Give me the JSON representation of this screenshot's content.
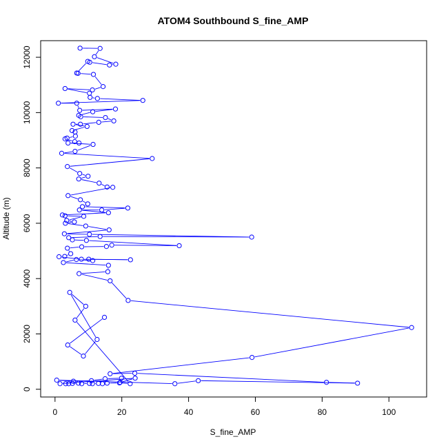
{
  "chart_data": {
    "type": "line",
    "title": "ATOM4 Southbound S_fine_AMP",
    "xlabel": "S_fine_AMP",
    "ylabel": "Altitude (m)",
    "xlim": [
      -4.3,
      111.3
    ],
    "ylim": [
      -280,
      12600
    ],
    "x_ticks": [
      0,
      20,
      40,
      60,
      80,
      100
    ],
    "y_ticks": [
      0,
      2000,
      4000,
      6000,
      8000,
      10000,
      12000
    ],
    "grid": false,
    "color": "#0000ff",
    "markers": "open-circle",
    "series": [
      {
        "name": "",
        "points": [
          [
            7.5,
            12330
          ],
          [
            13.5,
            12320
          ],
          [
            11.8,
            12020
          ],
          [
            18.2,
            11750
          ],
          [
            16.3,
            11720
          ],
          [
            10.4,
            11820
          ],
          [
            9.8,
            11850
          ],
          [
            6.5,
            11430
          ],
          [
            6.9,
            11420
          ],
          [
            11.5,
            11380
          ],
          [
            14.4,
            10940
          ],
          [
            11.2,
            10820
          ],
          [
            3.0,
            10870
          ],
          [
            10.3,
            10700
          ],
          [
            10.5,
            10550
          ],
          [
            12.7,
            10510
          ],
          [
            26.3,
            10440
          ],
          [
            1.0,
            10340
          ],
          [
            6.5,
            10340
          ],
          [
            7.4,
            10080
          ],
          [
            18.1,
            10130
          ],
          [
            11.3,
            10030
          ],
          [
            7.1,
            9900
          ],
          [
            7.7,
            9850
          ],
          [
            15.1,
            9820
          ],
          [
            17.6,
            9700
          ],
          [
            13.1,
            9650
          ],
          [
            7.6,
            9580
          ],
          [
            5.4,
            9580
          ],
          [
            9.6,
            9500
          ],
          [
            5.1,
            9350
          ],
          [
            6.0,
            9300
          ],
          [
            6.1,
            9150
          ],
          [
            3.6,
            9080
          ],
          [
            3.0,
            9050
          ],
          [
            5.9,
            8950
          ],
          [
            7.2,
            8900
          ],
          [
            3.9,
            8900
          ],
          [
            11.4,
            8850
          ],
          [
            6.0,
            8600
          ],
          [
            2.0,
            8530
          ],
          [
            29.1,
            8340
          ],
          [
            3.7,
            8050
          ],
          [
            7.4,
            7800
          ],
          [
            9.9,
            7700
          ],
          [
            7.1,
            7600
          ],
          [
            13.2,
            7450
          ],
          [
            15.6,
            7310
          ],
          [
            17.3,
            7300
          ],
          [
            3.9,
            7000
          ],
          [
            7.6,
            6850
          ],
          [
            9.8,
            6700
          ],
          [
            8.2,
            6600
          ],
          [
            21.8,
            6550
          ],
          [
            14.0,
            6480
          ],
          [
            7.3,
            6480
          ],
          [
            16.0,
            6380
          ],
          [
            2.2,
            6300
          ],
          [
            3.0,
            6270
          ],
          [
            8.6,
            6250
          ],
          [
            3.5,
            6100
          ],
          [
            5.8,
            6050
          ],
          [
            3.1,
            6000
          ],
          [
            9.2,
            5900
          ],
          [
            16.2,
            5760
          ],
          [
            2.8,
            5620
          ],
          [
            10.3,
            5600
          ],
          [
            58.9,
            5500
          ],
          [
            13.5,
            5520
          ],
          [
            4.1,
            5480
          ],
          [
            5.2,
            5400
          ],
          [
            9.4,
            5380
          ],
          [
            37.2,
            5190
          ],
          [
            17.0,
            5210
          ],
          [
            15.4,
            5160
          ],
          [
            8.0,
            5150
          ],
          [
            3.7,
            5100
          ],
          [
            4.7,
            4900
          ],
          [
            2.9,
            4800
          ],
          [
            1.2,
            4790
          ],
          [
            7.9,
            4700
          ],
          [
            22.6,
            4680
          ],
          [
            10.1,
            4700
          ],
          [
            11.3,
            4650
          ],
          [
            6.4,
            4690
          ],
          [
            2.5,
            4580
          ],
          [
            16.0,
            4480
          ],
          [
            15.8,
            4250
          ],
          [
            7.2,
            4180
          ],
          [
            16.5,
            3920
          ],
          [
            21.9,
            3210
          ],
          [
            106.8,
            2230
          ],
          [
            59.0,
            1150
          ],
          [
            16.5,
            560
          ],
          [
            23.9,
            580
          ],
          [
            81.3,
            250
          ],
          [
            90.6,
            220
          ],
          [
            42.9,
            310
          ],
          [
            35.9,
            200
          ],
          [
            0.5,
            330
          ],
          [
            5.5,
            290
          ],
          [
            10.9,
            310
          ],
          [
            15.0,
            380
          ],
          [
            19.9,
            400
          ],
          [
            19.5,
            250
          ],
          [
            24.0,
            400
          ],
          [
            1.5,
            200
          ],
          [
            3.2,
            200
          ],
          [
            4.1,
            200
          ],
          [
            5.2,
            210
          ],
          [
            7.0,
            220
          ],
          [
            8.0,
            200
          ],
          [
            10.3,
            210
          ],
          [
            11.2,
            200
          ],
          [
            13.0,
            210
          ],
          [
            14.2,
            200
          ],
          [
            15.6,
            220
          ],
          [
            19.3,
            230
          ],
          [
            22.5,
            200
          ],
          [
            6.0,
            2500
          ],
          [
            9.2,
            3000
          ],
          [
            4.4,
            3500
          ],
          [
            12.6,
            1800
          ],
          [
            8.5,
            1200
          ],
          [
            3.8,
            1600
          ],
          [
            14.8,
            2600
          ]
        ]
      }
    ]
  }
}
